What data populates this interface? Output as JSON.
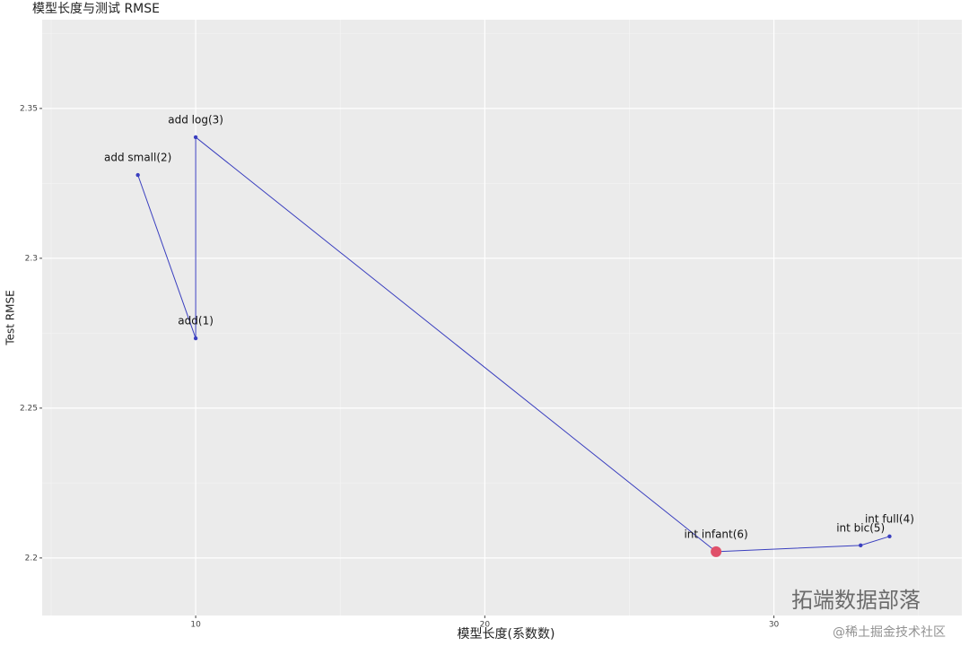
{
  "chart_data": {
    "type": "line",
    "title": "模型长度与测试 RMSE",
    "x_label": "模型长度(系数数)",
    "y_label": "Test RMSE",
    "x": [
      8,
      10,
      10,
      28,
      33,
      34
    ],
    "values": [
      2.3278,
      2.2733,
      2.3404,
      2.2021,
      2.2042,
      2.2072
    ],
    "labels": [
      "add small(2)",
      "add(1)",
      "add log(3)",
      "int infant(6)",
      "int bic(5)",
      "int full(4)"
    ],
    "color": "#3a3fbf",
    "highlight": 3,
    "highlight_color": "#e0506a",
    "xlim": [
      4.69,
      36.5
    ],
    "xticks": [
      10,
      20,
      30
    ],
    "minor_xticks": [
      5,
      15,
      25,
      35
    ],
    "ylim": [
      2.1808,
      2.3796
    ],
    "yticks": [
      2.2,
      2.25,
      2.3,
      2.35
    ],
    "minor_yticks": [
      2.225,
      2.275,
      2.325,
      2.375
    ],
    "grid": true,
    "watermarks": [
      "拓端数据部落",
      "@稀土掘金技术社区"
    ]
  }
}
